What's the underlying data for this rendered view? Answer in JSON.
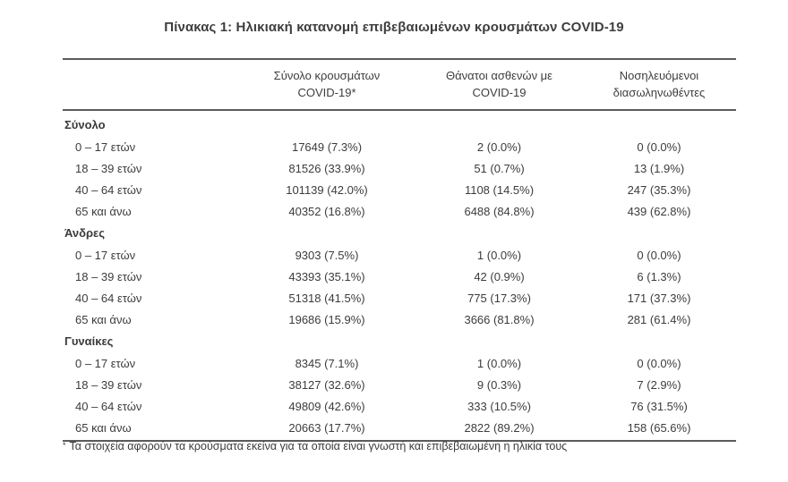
{
  "page": {
    "title": "Πίνακας 1: Ηλικιακή κατανομή επιβεβαιωμένων κρουσμάτων COVID-19"
  },
  "table": {
    "columns": [
      {
        "line1": "Σύνολο κρουσμάτων",
        "line2": "COVID-19*"
      },
      {
        "line1": "Θάνατοι ασθενών με",
        "line2": "COVID-19"
      },
      {
        "line1": "Νοσηλευόμενοι",
        "line2": "διασωληνωθέντες"
      }
    ],
    "sections": [
      {
        "label": "Σύνολο",
        "rows": [
          {
            "label": "0 – 17 ετών",
            "cases": "17649 (7.3%)",
            "deaths": "2 (0.0%)",
            "intubated": "0 (0.0%)"
          },
          {
            "label": "18 – 39 ετών",
            "cases": "81526 (33.9%)",
            "deaths": "51 (0.7%)",
            "intubated": "13 (1.9%)"
          },
          {
            "label": "40 – 64 ετών",
            "cases": "101139 (42.0%)",
            "deaths": "1108 (14.5%)",
            "intubated": "247 (35.3%)"
          },
          {
            "label": "65 και άνω",
            "cases": "40352 (16.8%)",
            "deaths": "6488 (84.8%)",
            "intubated": "439 (62.8%)"
          }
        ]
      },
      {
        "label": "Άνδρες",
        "rows": [
          {
            "label": "0 – 17 ετών",
            "cases": "9303 (7.5%)",
            "deaths": "1 (0.0%)",
            "intubated": "0 (0.0%)"
          },
          {
            "label": "18 – 39 ετών",
            "cases": "43393 (35.1%)",
            "deaths": "42 (0.9%)",
            "intubated": "6 (1.3%)"
          },
          {
            "label": "40 – 64 ετών",
            "cases": "51318 (41.5%)",
            "deaths": "775 (17.3%)",
            "intubated": "171 (37.3%)"
          },
          {
            "label": "65 και άνω",
            "cases": "19686 (15.9%)",
            "deaths": "3666 (81.8%)",
            "intubated": "281 (61.4%)"
          }
        ]
      },
      {
        "label": "Γυναίκες",
        "rows": [
          {
            "label": "0 – 17 ετών",
            "cases": "8345 (7.1%)",
            "deaths": "1 (0.0%)",
            "intubated": "0 (0.0%)"
          },
          {
            "label": "18 – 39 ετών",
            "cases": "38127 (32.6%)",
            "deaths": "9 (0.3%)",
            "intubated": "7 (2.9%)"
          },
          {
            "label": "40 – 64 ετών",
            "cases": "49809 (42.6%)",
            "deaths": "333 (10.5%)",
            "intubated": "76 (31.5%)"
          },
          {
            "label": "65 και άνω",
            "cases": "20663 (17.7%)",
            "deaths": "2822 (89.2%)",
            "intubated": "158 (65.6%)"
          }
        ]
      }
    ]
  },
  "footnote": {
    "marker": "*",
    "text": "Τα στοιχεία αφορούν τα κρούσματα εκείνα για τα οποία είναι γνωστή και επιβεβαιωμένη η ηλικία τους"
  },
  "colors": {
    "text": "#3c3c3c",
    "rule": "#5b5b5b",
    "background": "#ffffff"
  }
}
